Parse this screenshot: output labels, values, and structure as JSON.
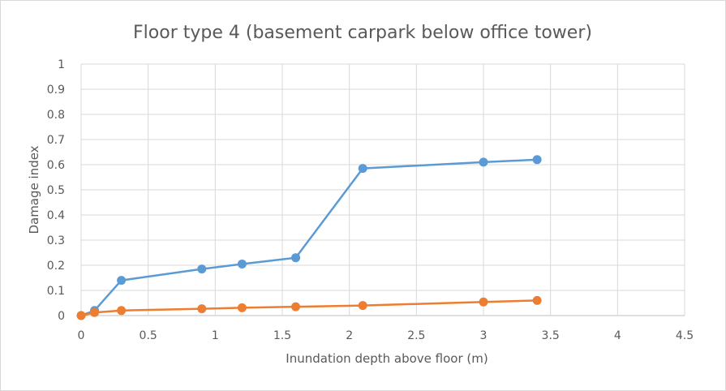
{
  "chart_data": {
    "type": "line",
    "title": "Floor type 4 (basement carpark below office tower)",
    "xlabel": "Inundation depth above floor (m)",
    "ylabel": "Damage index",
    "xlim": [
      0,
      4.5
    ],
    "ylim": [
      0,
      1
    ],
    "xticks": [
      0,
      0.5,
      1,
      1.5,
      2,
      2.5,
      3,
      3.5,
      4,
      4.5
    ],
    "xtick_labels": [
      "0",
      "0.5",
      "1",
      "1.5",
      "2",
      "2.5",
      "3",
      "3.5",
      "4",
      "4.5"
    ],
    "yticks": [
      0,
      0.1,
      0.2,
      0.3,
      0.4,
      0.5,
      0.6,
      0.7,
      0.8,
      0.9,
      1
    ],
    "ytick_labels": [
      "0",
      "0.1",
      "0.2",
      "0.3",
      "0.4",
      "0.5",
      "0.6",
      "0.7",
      "0.8",
      "0.9",
      "1"
    ],
    "grid": true,
    "legend": "none",
    "series": [
      {
        "name": "Series 1",
        "color": "#5b9bd5",
        "x": [
          0,
          0.1,
          0.3,
          0.9,
          1.2,
          1.6,
          2.1,
          3.0,
          3.4
        ],
        "y": [
          0,
          0.02,
          0.14,
          0.185,
          0.205,
          0.23,
          0.585,
          0.61,
          0.62
        ]
      },
      {
        "name": "Series 2",
        "color": "#ed7d31",
        "x": [
          0,
          0.1,
          0.3,
          0.9,
          1.2,
          1.6,
          2.1,
          3.0,
          3.4
        ],
        "y": [
          0,
          0.012,
          0.02,
          0.027,
          0.031,
          0.035,
          0.04,
          0.054,
          0.06
        ]
      }
    ]
  }
}
